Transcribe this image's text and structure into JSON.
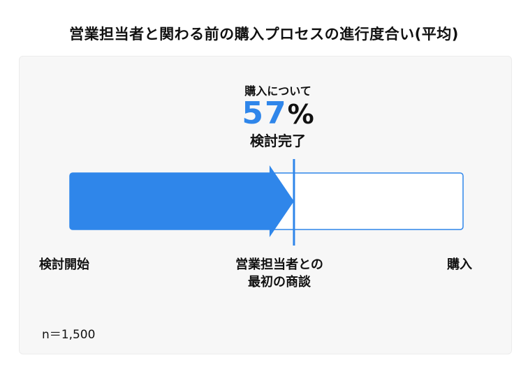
{
  "title": "営業担当者と関わる前の購入プロセスの進行度合い(平均)",
  "callout": {
    "top": "購入について",
    "number": "57",
    "unit": "%",
    "bottom": "検討完了"
  },
  "labels": {
    "start": "検討開始",
    "middle_line1": "営業担当者との",
    "middle_line2": "最初の商談",
    "end": "購入"
  },
  "note": "n＝1,500",
  "colors": {
    "accent": "#2f86ea",
    "text": "#111111",
    "panel": "#f7f7f7"
  },
  "chart_data": {
    "type": "bar",
    "orientation": "horizontal",
    "values": [
      57
    ],
    "value_unit": "%",
    "xlim": [
      0,
      100
    ],
    "axis_labels": {
      "start": "検討開始",
      "middle": "営業担当者との最初の商談",
      "end": "購入"
    },
    "title": "営業担当者と関わる前の購入プロセスの進行度合い(平均)",
    "annotation": "購入について 57% 検討完了",
    "sample": "n＝1,500"
  }
}
